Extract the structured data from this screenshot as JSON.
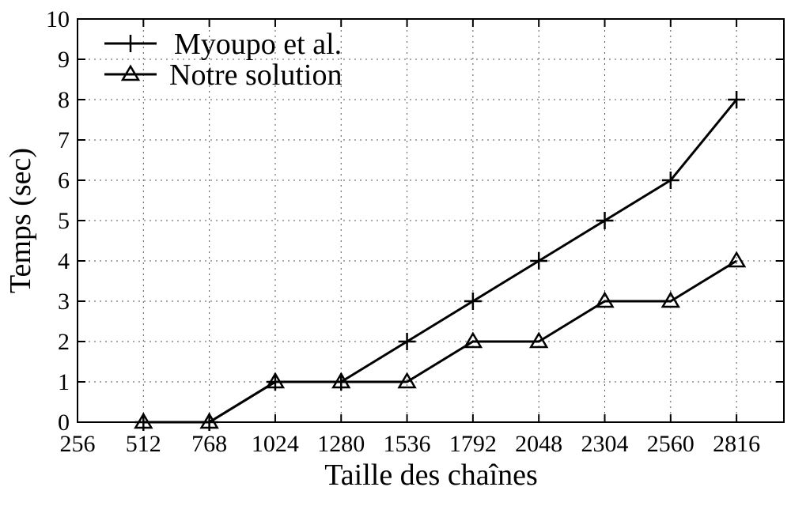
{
  "chart_data": {
    "type": "line",
    "xlabel": "Taille des chaînes",
    "ylabel": "Temps (sec)",
    "x_ticks": [
      256,
      512,
      768,
      1024,
      1280,
      1536,
      1792,
      2048,
      2304,
      2560,
      2816
    ],
    "y_ticks": [
      0,
      1,
      2,
      3,
      4,
      5,
      6,
      7,
      8,
      9,
      10
    ],
    "xlim": [
      256,
      3000
    ],
    "ylim": [
      0,
      10
    ],
    "grid": true,
    "legend_position": "top-left",
    "series": [
      {
        "name": "Myoupo et al.",
        "marker": "plus",
        "x": [
          512,
          768,
          1024,
          1280,
          1536,
          1792,
          2048,
          2304,
          2560,
          2816
        ],
        "y": [
          0,
          0,
          1,
          1,
          2,
          3,
          4,
          5,
          6,
          8
        ]
      },
      {
        "name": "Notre solution",
        "marker": "triangle",
        "x": [
          512,
          768,
          1024,
          1280,
          1536,
          1792,
          2048,
          2304,
          2560,
          2816
        ],
        "y": [
          0,
          0,
          1,
          1,
          1,
          2,
          2,
          3,
          3,
          4
        ]
      }
    ],
    "colors": {
      "line": "#000000",
      "grid": "#555555"
    }
  }
}
